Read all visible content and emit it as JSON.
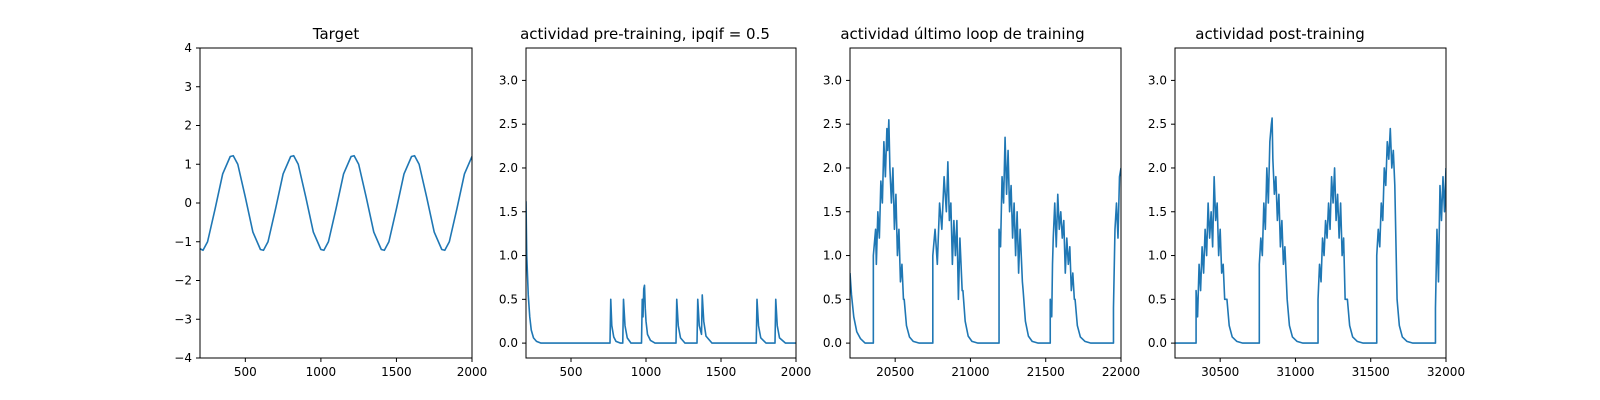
{
  "chart_data": [
    {
      "type": "line",
      "title": "Target",
      "xlabel": "",
      "ylabel": "",
      "xlim": [
        200,
        2000
      ],
      "ylim": [
        -4,
        4
      ],
      "xticks": [
        500,
        1000,
        1500,
        2000
      ],
      "yticks": [
        -4,
        -3,
        -2,
        -1,
        0,
        1,
        2,
        3,
        4
      ],
      "ytick_labels": [
        "−4",
        "−3",
        "−2",
        "−1",
        "0",
        "1",
        "2",
        "3",
        "4"
      ],
      "grid": false,
      "color": "#1f77b4",
      "series": [
        {
          "x": [
            200,
            220,
            250,
            300,
            350,
            400,
            420,
            450,
            500,
            550,
            600,
            620,
            650,
            700,
            750,
            800,
            820,
            850,
            900,
            950,
            1000,
            1020,
            1050,
            1100,
            1150,
            1200,
            1220,
            1250,
            1300,
            1350,
            1400,
            1420,
            1450,
            1500,
            1550,
            1600,
            1620,
            1650,
            1700,
            1750,
            1800,
            1820,
            1850,
            1900,
            1950,
            2000
          ],
          "y": [
            -1.18,
            -1.22,
            -1.0,
            -0.15,
            0.75,
            1.2,
            1.22,
            1.0,
            0.15,
            -0.75,
            -1.2,
            -1.22,
            -1.0,
            -0.15,
            0.75,
            1.2,
            1.22,
            1.0,
            0.15,
            -0.75,
            -1.2,
            -1.22,
            -1.0,
            -0.15,
            0.75,
            1.2,
            1.22,
            1.0,
            0.15,
            -0.75,
            -1.2,
            -1.22,
            -1.0,
            -0.15,
            0.75,
            1.2,
            1.22,
            1.0,
            0.15,
            -0.75,
            -1.2,
            -1.22,
            -1.0,
            -0.15,
            0.75,
            1.2
          ]
        }
      ]
    },
    {
      "type": "line",
      "title": "actividad pre-training, ipqif = 0.5",
      "xlabel": "",
      "ylabel": "",
      "xlim": [
        200,
        2000
      ],
      "ylim": [
        -0.17,
        3.37
      ],
      "xticks": [
        500,
        1000,
        1500,
        2000
      ],
      "yticks": [
        0.0,
        0.5,
        1.0,
        1.5,
        2.0,
        2.5,
        3.0
      ],
      "ytick_labels": [
        "0.0",
        "0.5",
        "1.0",
        "1.5",
        "2.0",
        "2.5",
        "3.0"
      ],
      "grid": false,
      "color": "#1f77b4",
      "series": [
        {
          "x": [
            200,
            205,
            215,
            225,
            235,
            250,
            270,
            300,
            760,
            765,
            772,
            785,
            800,
            830,
            845,
            850,
            860,
            875,
            900,
            970,
            975,
            980,
            985,
            990,
            995,
            1000,
            1010,
            1030,
            1060,
            1200,
            1205,
            1215,
            1230,
            1260,
            1340,
            1345,
            1355,
            1370,
            1375,
            1385,
            1400,
            1440,
            1735,
            1740,
            1750,
            1765,
            1800,
            1860,
            1865,
            1875,
            1890,
            1930,
            2000
          ],
          "y": [
            1.62,
            1.0,
            0.55,
            0.3,
            0.15,
            0.06,
            0.02,
            0.0,
            0.0,
            0.5,
            0.2,
            0.07,
            0.02,
            0.0,
            0.0,
            0.5,
            0.2,
            0.06,
            0.0,
            0.0,
            0.5,
            0.3,
            0.62,
            0.66,
            0.4,
            0.25,
            0.1,
            0.03,
            0.0,
            0.0,
            0.5,
            0.2,
            0.06,
            0.0,
            0.0,
            0.5,
            0.2,
            0.1,
            0.55,
            0.25,
            0.08,
            0.0,
            0.0,
            0.5,
            0.2,
            0.06,
            0.0,
            0.0,
            0.5,
            0.2,
            0.06,
            0.0,
            0.0
          ]
        }
      ]
    },
    {
      "type": "line",
      "title": "actividad último loop de training",
      "xlabel": "",
      "ylabel": "",
      "xlim": [
        20200,
        22000
      ],
      "ylim": [
        -0.17,
        3.37
      ],
      "xticks": [
        20500,
        21000,
        21500,
        22000
      ],
      "yticks": [
        0.0,
        0.5,
        1.0,
        1.5,
        2.0,
        2.5,
        3.0
      ],
      "ytick_labels": [
        "0.0",
        "0.5",
        "1.0",
        "1.5",
        "2.0",
        "2.5",
        "3.0"
      ],
      "grid": false,
      "color": "#1f77b4",
      "series": [
        {
          "x": [
            20200,
            20210,
            20225,
            20245,
            20270,
            20300,
            20355,
            20355,
            20370,
            20375,
            20385,
            20395,
            20405,
            20415,
            20425,
            20435,
            20445,
            20450,
            20458,
            20465,
            20475,
            20485,
            20495,
            20505,
            20515,
            20525,
            20535,
            20545,
            20555,
            20560,
            20575,
            20595,
            20620,
            20660,
            20750,
            20750,
            20765,
            20780,
            20795,
            20810,
            20825,
            20840,
            20850,
            20860,
            20870,
            20880,
            20890,
            20900,
            20910,
            20920,
            20930,
            20945,
            20950,
            20965,
            20985,
            21010,
            21050,
            21190,
            21190,
            21200,
            21210,
            21220,
            21230,
            21240,
            21250,
            21260,
            21270,
            21280,
            21290,
            21300,
            21310,
            21320,
            21330,
            21345,
            21350,
            21365,
            21385,
            21410,
            21450,
            21530,
            21530,
            21540,
            21545,
            21550,
            21560,
            21570,
            21580,
            21590,
            21600,
            21610,
            21620,
            21630,
            21640,
            21650,
            21660,
            21670,
            21680,
            21690,
            21695,
            21710,
            21730,
            21760,
            21800,
            21950,
            21950,
            21960,
            21970,
            21980,
            21990,
            22000
          ],
          "y": [
            0.8,
            0.55,
            0.3,
            0.13,
            0.05,
            0.0,
            0.0,
            1.0,
            1.3,
            0.9,
            1.5,
            1.2,
            1.85,
            1.6,
            2.3,
            1.9,
            2.45,
            2.2,
            2.55,
            2.0,
            1.6,
            2.0,
            1.3,
            1.7,
            1.0,
            1.3,
            0.7,
            0.9,
            0.5,
            0.5,
            0.2,
            0.07,
            0.02,
            0.0,
            0.0,
            1.0,
            1.3,
            0.9,
            1.6,
            1.3,
            1.9,
            1.5,
            2.07,
            1.4,
            1.6,
            0.9,
            1.4,
            1.0,
            1.4,
            0.5,
            1.2,
            0.6,
            0.6,
            0.25,
            0.08,
            0.02,
            0.0,
            0.0,
            1.3,
            1.1,
            1.9,
            1.6,
            2.35,
            1.7,
            2.2,
            1.5,
            1.8,
            1.2,
            1.6,
            1.0,
            1.5,
            0.8,
            1.3,
            0.7,
            0.6,
            0.25,
            0.08,
            0.02,
            0.0,
            0.0,
            0.5,
            0.3,
            0.9,
            1.2,
            1.6,
            1.1,
            1.7,
            1.3,
            1.5,
            1.2,
            1.4,
            0.8,
            1.2,
            0.9,
            1.1,
            0.6,
            0.8,
            0.5,
            0.5,
            0.2,
            0.07,
            0.02,
            0.0,
            0.0,
            0.4,
            1.3,
            1.6,
            1.2,
            1.9,
            2.0
          ]
        }
      ]
    },
    {
      "type": "line",
      "title": "actividad post-training",
      "xlabel": "",
      "ylabel": "",
      "xlim": [
        30200,
        32000
      ],
      "ylim": [
        -0.17,
        3.37
      ],
      "xticks": [
        30500,
        31000,
        31500,
        32000
      ],
      "yticks": [
        0.0,
        0.5,
        1.0,
        1.5,
        2.0,
        2.5,
        3.0
      ],
      "ytick_labels": [
        "0.0",
        "0.5",
        "1.0",
        "1.5",
        "2.0",
        "2.5",
        "3.0"
      ],
      "grid": false,
      "color": "#1f77b4",
      "series": [
        {
          "x": [
            30200,
            30230,
            30260,
            30300,
            30340,
            30340,
            30350,
            30360,
            30370,
            30380,
            30390,
            30400,
            30410,
            30420,
            30430,
            30440,
            30450,
            30460,
            30470,
            30480,
            30490,
            30500,
            30510,
            30520,
            30530,
            30545,
            30560,
            30580,
            30610,
            30650,
            30760,
            30760,
            30770,
            30780,
            30790,
            30800,
            30810,
            30820,
            30830,
            30840,
            30845,
            30850,
            30860,
            30870,
            30880,
            30890,
            30900,
            30910,
            30920,
            30930,
            30945,
            30960,
            30980,
            31010,
            31050,
            31150,
            31150,
            31160,
            31170,
            31180,
            31190,
            31200,
            31210,
            31220,
            31230,
            31240,
            31250,
            31260,
            31270,
            31280,
            31290,
            31300,
            31310,
            31320,
            31330,
            31345,
            31360,
            31380,
            31410,
            31450,
            31540,
            31540,
            31550,
            31560,
            31570,
            31580,
            31590,
            31600,
            31610,
            31620,
            31630,
            31640,
            31650,
            31660,
            31675,
            31690,
            31710,
            31740,
            31780,
            31930,
            31930,
            31940,
            31950,
            31960,
            31970,
            31980,
            31990,
            32000
          ],
          "y": [
            0.0,
            0.0,
            0.0,
            0.0,
            0.0,
            0.6,
            0.3,
            0.9,
            0.6,
            1.1,
            0.8,
            1.3,
            1.0,
            1.6,
            1.2,
            1.5,
            1.1,
            1.9,
            1.4,
            1.6,
            1.0,
            1.3,
            0.8,
            0.9,
            0.5,
            0.5,
            0.2,
            0.07,
            0.02,
            0.0,
            0.0,
            0.9,
            1.2,
            1.0,
            1.6,
            1.3,
            2.0,
            1.6,
            2.3,
            2.5,
            2.57,
            2.1,
            1.7,
            1.9,
            1.4,
            1.7,
            1.1,
            1.4,
            0.9,
            1.1,
            0.5,
            0.2,
            0.07,
            0.02,
            0.0,
            0.0,
            0.5,
            0.9,
            0.7,
            1.2,
            1.0,
            1.4,
            1.2,
            1.6,
            1.3,
            1.9,
            1.6,
            2.0,
            1.4,
            1.7,
            1.2,
            1.6,
            1.0,
            1.2,
            0.5,
            0.5,
            0.2,
            0.07,
            0.02,
            0.0,
            0.0,
            1.0,
            1.3,
            1.1,
            1.6,
            1.4,
            2.0,
            1.8,
            2.3,
            2.1,
            2.45,
            2.0,
            2.2,
            1.8,
            0.5,
            0.2,
            0.07,
            0.02,
            0.0,
            0.0,
            0.4,
            1.3,
            0.7,
            1.8,
            1.4,
            1.9,
            1.5,
            2.0
          ]
        }
      ]
    }
  ]
}
